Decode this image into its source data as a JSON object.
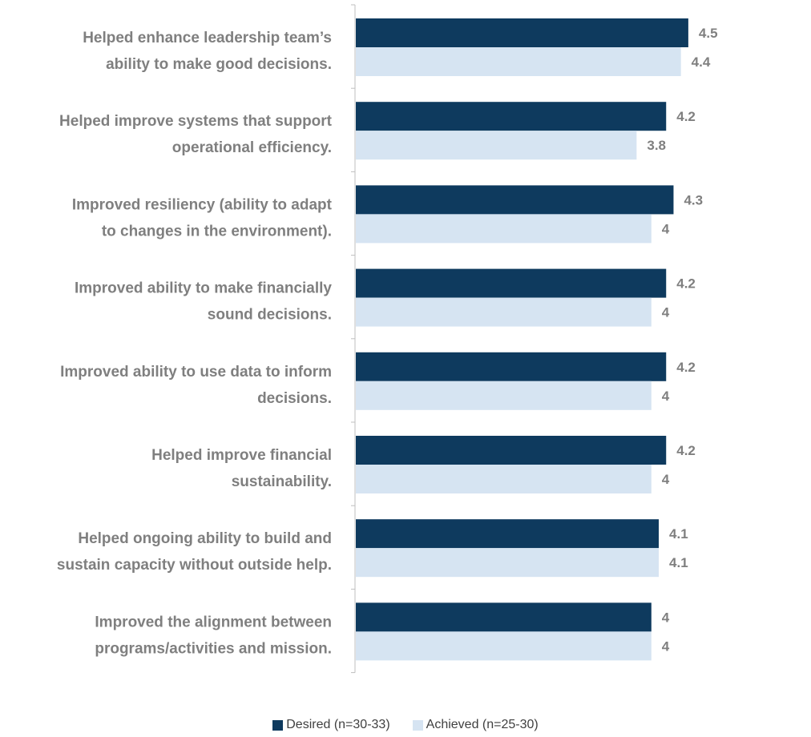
{
  "chart_data": {
    "type": "bar",
    "orientation": "horizontal",
    "categories": [
      [
        "Helped enhance  leadership team’s",
        "ability to make good decisions."
      ],
      [
        "Helped improve systems that support",
        "operational efficiency."
      ],
      [
        "Improved resiliency (ability to adapt",
        "to changes in the environment)."
      ],
      [
        "Improved ability to make financially",
        "sound decisions."
      ],
      [
        "Improved ability to use data to inform",
        "decisions."
      ],
      [
        "Helped improve financial",
        "sustainability."
      ],
      [
        "Helped ongoing ability to build and",
        "sustain capacity without outside help."
      ],
      [
        "Improved the alignment between",
        "programs/activities and mission."
      ]
    ],
    "series": [
      {
        "name": "Desired (n=30-33)",
        "color": "#0e3a5e",
        "values": [
          4.5,
          4.2,
          4.3,
          4.2,
          4.2,
          4.2,
          4.1,
          4.0
        ],
        "labels": [
          "4.5",
          "4.2",
          "4.3",
          "4.2",
          "4.2",
          "4.2",
          "4.1",
          "4"
        ]
      },
      {
        "name": "Achieved (n=25-30)",
        "color": "#d6e4f2",
        "values": [
          4.4,
          3.8,
          4.0,
          4.0,
          4.0,
          4.0,
          4.1,
          4.0
        ],
        "labels": [
          "4.4",
          "3.8",
          "4",
          "4",
          "4",
          "4",
          "4.1",
          "4"
        ]
      }
    ],
    "xlim": [
      0,
      5
    ],
    "grid": false,
    "legend": "bottom"
  }
}
